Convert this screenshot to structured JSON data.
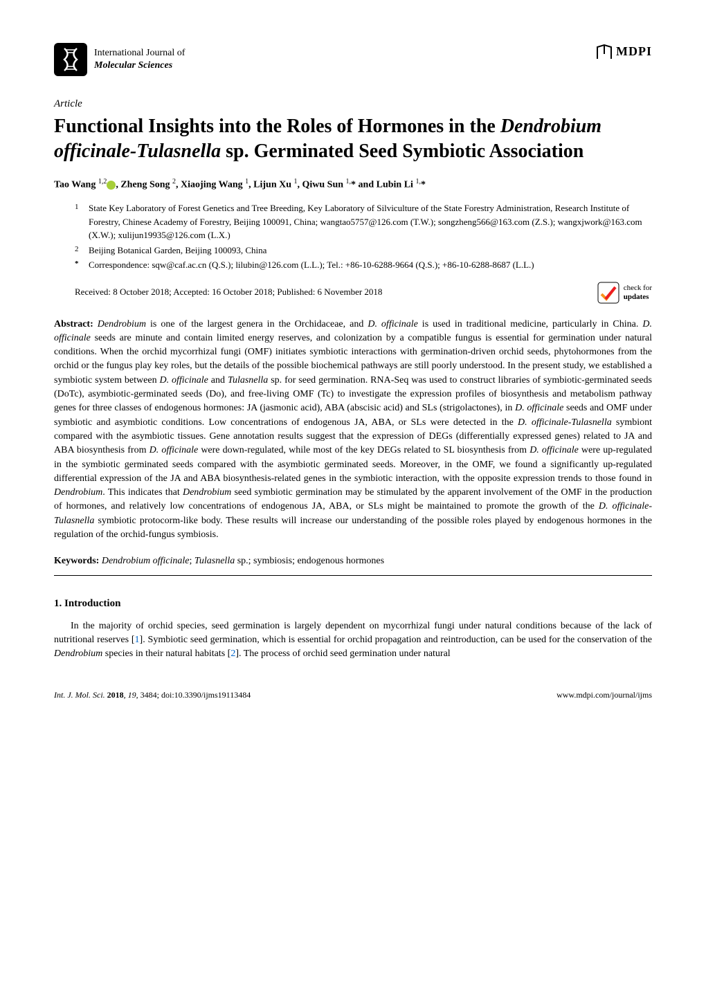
{
  "journal": {
    "line1": "International Journal of",
    "line2": "Molecular Sciences"
  },
  "publisher": "MDPI",
  "article_type": "Article",
  "title": {
    "part1": "Functional Insights into the Roles of Hormones in the ",
    "italic1": "Dendrobium officinale-Tulasnella",
    "part2": " sp. Germinated Seed Symbiotic Association"
  },
  "authors": {
    "a1_name": "Tao Wang ",
    "a1_sup": "1,2",
    "a2_name": ", Zheng Song ",
    "a2_sup": "2",
    "a3_name": ", Xiaojing Wang ",
    "a3_sup": "1",
    "a4_name": ", Lijun Xu ",
    "a4_sup": "1",
    "a5_name": ", Qiwu Sun ",
    "a5_sup": "1,",
    "a5_star": "*",
    "a6_name": " and Lubin Li ",
    "a6_sup": "1,",
    "a6_star": "*"
  },
  "affiliations": {
    "aff1_num": "1",
    "aff1_text": "State Key Laboratory of Forest Genetics and Tree Breeding, Key Laboratory of Silviculture of the State Forestry Administration, Research Institute of Forestry, Chinese Academy of Forestry, Beijing 100091, China; wangtao5757@126.com (T.W.); songzheng566@163.com (Z.S.); wangxjwork@163.com (X.W.); xulijun19935@126.com (L.X.)",
    "aff2_num": "2",
    "aff2_text": "Beijing Botanical Garden, Beijing 100093, China",
    "corr_num": "*",
    "corr_text": "Correspondence: sqw@caf.ac.cn (Q.S.); lilubin@126.com (L.L.); Tel.: +86-10-6288-9664 (Q.S.); +86-10-6288-8687 (L.L.)"
  },
  "dates": "Received: 8 October 2018; Accepted: 16 October 2018; Published: 6 November 2018",
  "updates_badge": {
    "line1": "check for",
    "line2": "updates"
  },
  "abstract": {
    "label": "Abstract: ",
    "text_parts": [
      {
        "italic": true,
        "t": "Dendrobium"
      },
      {
        "italic": false,
        "t": " is one of the largest genera in the Orchidaceae, and "
      },
      {
        "italic": true,
        "t": "D. officinale"
      },
      {
        "italic": false,
        "t": " is used in traditional medicine, particularly in China. "
      },
      {
        "italic": true,
        "t": "D. officinale"
      },
      {
        "italic": false,
        "t": " seeds are minute and contain limited energy reserves, and colonization by a compatible fungus is essential for germination under natural conditions. When the orchid mycorrhizal fungi (OMF) initiates symbiotic interactions with germination-driven orchid seeds, phytohormones from the orchid or the fungus play key roles, but the details of the possible biochemical pathways are still poorly understood. In the present study, we established a symbiotic system between "
      },
      {
        "italic": true,
        "t": "D. officinale"
      },
      {
        "italic": false,
        "t": " and "
      },
      {
        "italic": true,
        "t": "Tulasnella"
      },
      {
        "italic": false,
        "t": " sp. for seed germination. RNA-Seq was used to construct libraries of symbiotic-germinated seeds (DoTc), asymbiotic-germinated seeds (Do), and free-living OMF (Tc) to investigate the expression profiles of biosynthesis and metabolism pathway genes for three classes of endogenous hormones: JA (jasmonic acid), ABA (abscisic acid) and SLs (strigolactones), in "
      },
      {
        "italic": true,
        "t": "D. officinale"
      },
      {
        "italic": false,
        "t": " seeds and OMF under symbiotic and asymbiotic conditions. Low concentrations of endogenous JA, ABA, or SLs were detected in the "
      },
      {
        "italic": true,
        "t": "D. officinale-Tulasnella"
      },
      {
        "italic": false,
        "t": " symbiont compared with the asymbiotic tissues. Gene annotation results suggest that the expression of DEGs (differentially expressed genes) related to JA and ABA biosynthesis from "
      },
      {
        "italic": true,
        "t": "D. officinale"
      },
      {
        "italic": false,
        "t": " were down-regulated, while most of the key DEGs related to SL biosynthesis from "
      },
      {
        "italic": true,
        "t": "D. officinale"
      },
      {
        "italic": false,
        "t": " were up-regulated in the symbiotic germinated seeds compared with the asymbiotic germinated seeds. Moreover, in the OMF, we found a significantly up-regulated differential expression of the JA and ABA biosynthesis-related genes in the symbiotic interaction, with the opposite expression trends to those found in "
      },
      {
        "italic": true,
        "t": "Dendrobium"
      },
      {
        "italic": false,
        "t": ". This indicates that "
      },
      {
        "italic": true,
        "t": "Dendrobium"
      },
      {
        "italic": false,
        "t": " seed symbiotic germination may be stimulated by the apparent involvement of the OMF in the production of hormones, and relatively low concentrations of endogenous JA, ABA, or SLs might be maintained to promote the growth of the "
      },
      {
        "italic": true,
        "t": "D. officinale-Tulasnella"
      },
      {
        "italic": false,
        "t": " symbiotic protocorm-like body. These results will increase our understanding of the possible roles played by endogenous hormones in the regulation of the orchid-fungus symbiosis."
      }
    ]
  },
  "keywords": {
    "label": "Keywords: ",
    "k1": "Dendrobium officinale",
    "sep1": "; ",
    "k2": "Tulasnella",
    "k2_suffix": " sp.; symbiosis; endogenous hormones"
  },
  "section1": {
    "heading": "1. Introduction",
    "para1_parts": [
      {
        "t": "In the majority of orchid species, seed germination is largely dependent on mycorrhizal fungi under natural conditions because of the lack of nutritional reserves ["
      },
      {
        "ref": true,
        "t": "1"
      },
      {
        "t": "]. Symbiotic seed germination, which is essential for orchid propagation and reintroduction, can be used for the conservation of the "
      },
      {
        "italic": true,
        "t": "Dendrobium"
      },
      {
        "t": " species in their natural habitats ["
      },
      {
        "ref": true,
        "t": "2"
      },
      {
        "t": "]. The process of orchid seed germination under natural"
      }
    ]
  },
  "footer": {
    "left_journal": "Int. J. Mol. Sci. ",
    "left_year": "2018",
    "left_vol": ", 19",
    "left_rest": ", 3484; doi:10.3390/ijms19113484",
    "right": "www.mdpi.com/journal/ijms"
  },
  "colors": {
    "text": "#000000",
    "background": "#ffffff",
    "ref_link": "#0066cc",
    "orcid": "#a6ce39",
    "updates_orange": "#f7941e",
    "updates_red": "#ed1c24"
  }
}
